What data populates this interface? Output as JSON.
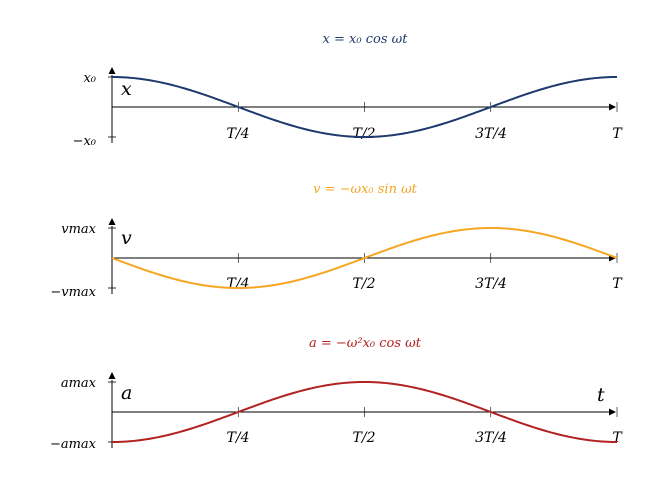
{
  "chart_data": [
    {
      "type": "line",
      "title": "x = x₀ cos ωt",
      "function": "cos",
      "sign": 1,
      "color": "#1f3a6e",
      "axis_label": "x",
      "y_ticks": [
        "x₀",
        "−x₀"
      ],
      "x_ticks": [
        "T/4",
        "T/2",
        "3T/4",
        "T"
      ],
      "xlim": [
        0,
        1
      ],
      "ylim": [
        -1,
        1
      ]
    },
    {
      "type": "line",
      "title": "v = −ωx₀ sin ωt",
      "function": "sin",
      "sign": -1,
      "color": "#f5a623",
      "axis_label": "v",
      "y_ticks": [
        "vmax",
        "−vmax"
      ],
      "x_ticks": [
        "T/4",
        "T/2",
        "3T/4",
        "T"
      ],
      "xlim": [
        0,
        1
      ],
      "ylim": [
        -1,
        1
      ]
    },
    {
      "type": "line",
      "title": "a = −ω²x₀ cos ωt",
      "function": "cos",
      "sign": -1,
      "color": "#b22222",
      "axis_label": "a",
      "x_axis_label": "t",
      "y_ticks": [
        "amax",
        "−amax"
      ],
      "x_ticks": [
        "T/4",
        "T/2",
        "3T/4",
        "T"
      ],
      "xlim": [
        0,
        1
      ],
      "ylim": [
        -1,
        1
      ]
    }
  ]
}
